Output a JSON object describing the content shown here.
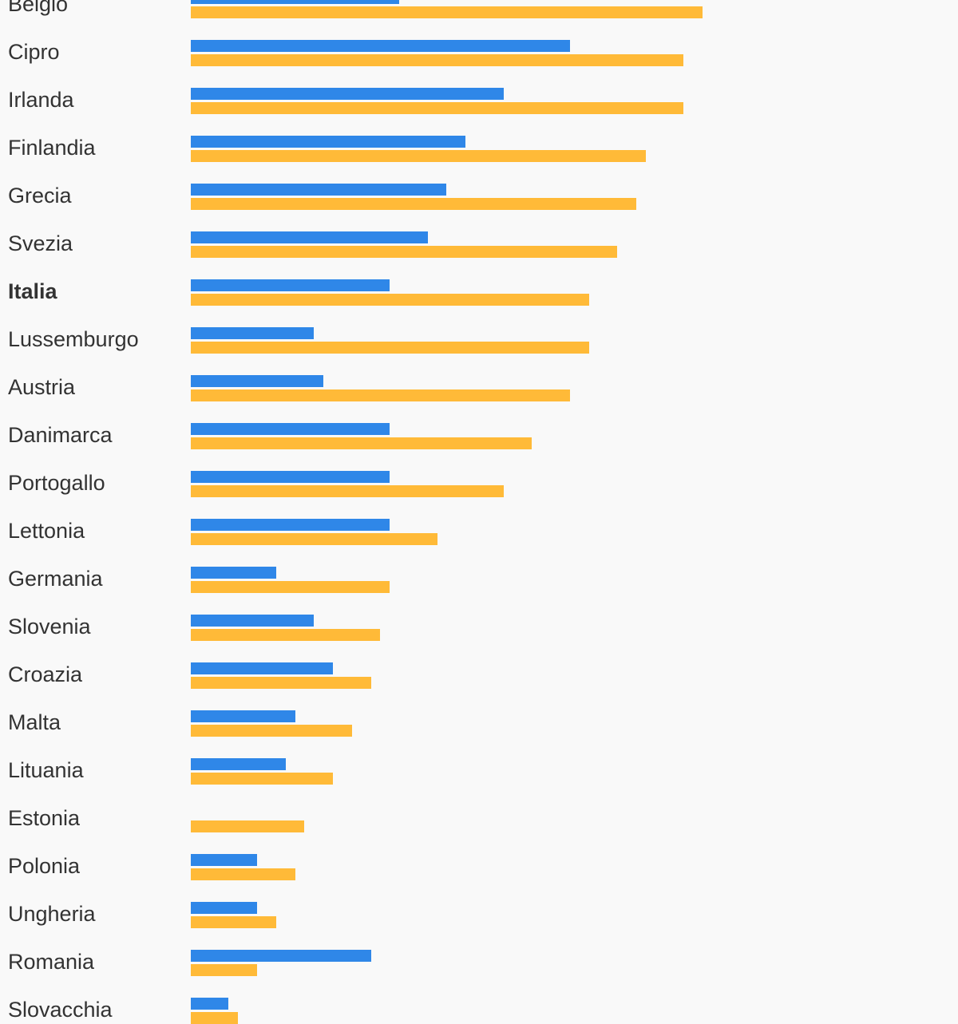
{
  "chart_data": {
    "type": "bar",
    "orientation": "horizontal",
    "series": [
      {
        "color": "#2f87e8",
        "values": [
          11,
          20,
          16.5,
          14.5,
          13.5,
          12.5,
          10.5,
          6.5,
          7,
          10.5,
          10.5,
          10.5,
          4.5,
          6.5,
          7.5,
          5.5,
          5,
          0,
          3.5,
          3.5,
          9.5,
          2
        ]
      },
      {
        "color": "#ffba38",
        "values": [
          27,
          26,
          26,
          24,
          23.5,
          22.5,
          21,
          21,
          20,
          18,
          16.5,
          13,
          10.5,
          10,
          9.5,
          8.5,
          7.5,
          6,
          5.5,
          4.5,
          3.5,
          2.5
        ]
      }
    ],
    "categories": [
      "Belgio",
      "Cipro",
      "Irlanda",
      "Finlandia",
      "Grecia",
      "Svezia",
      "Italia",
      "Lussemburgo",
      "Austria",
      "Danimarca",
      "Portogallo",
      "Lettonia",
      "Germania",
      "Slovenia",
      "Croazia",
      "Malta",
      "Lituania",
      "Estonia",
      "Polonia",
      "Ungheria",
      "Romania",
      "Slovacchia"
    ],
    "highlight": "Italia",
    "grid": false,
    "legend": "none"
  }
}
